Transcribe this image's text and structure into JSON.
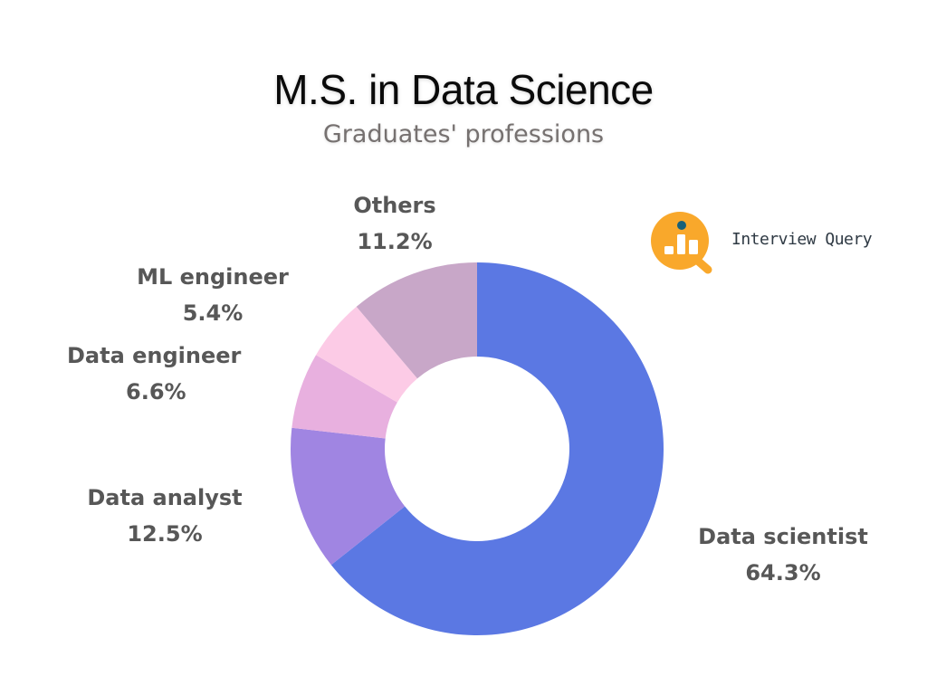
{
  "header": {
    "title": "M.S. in Data Science",
    "subtitle": "Graduates' professions"
  },
  "brand": {
    "name": "Interview Query",
    "logo_icon": "magnifier-chart-icon",
    "logo_color": "#f9a82b",
    "logo_dot_color": "#17607a"
  },
  "labels": [
    {
      "name": "Data scientist",
      "value": "64.3%"
    },
    {
      "name": "Data analyst",
      "value": "12.5%"
    },
    {
      "name": "Data engineer",
      "value": "6.6%"
    },
    {
      "name": "ML engineer",
      "value": "5.4%"
    },
    {
      "name": "Others",
      "value": "11.2%"
    }
  ],
  "chart_data": {
    "type": "pie",
    "subtype": "donut",
    "title": "M.S. in Data Science",
    "subtitle": "Graduates' professions",
    "categories": [
      "Data scientist",
      "Data analyst",
      "Data engineer",
      "ML engineer",
      "Others"
    ],
    "values": [
      64.3,
      12.5,
      6.6,
      5.4,
      11.2
    ],
    "unit": "%",
    "colors": [
      "#5b78e3",
      "#a085e2",
      "#e8b0df",
      "#fccbe6",
      "#c8a7c8"
    ],
    "start_angle_deg": 0,
    "direction": "clockwise",
    "legend": "none (direct labels)",
    "center": [
      527,
      496
    ],
    "outer_radius": 206,
    "inner_radius": 102
  }
}
